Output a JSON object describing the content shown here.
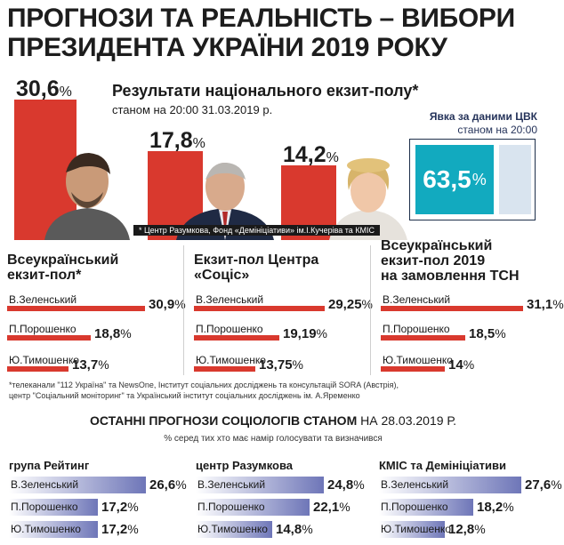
{
  "title": "ПРОГНОЗИ ТА РЕАЛЬНІСТЬ – ВИБОРИ ПРЕЗИДЕНТА УКРАЇНИ 2019 РОКУ",
  "exit_poll": {
    "title": "Результати національного екзит-полу*",
    "subtitle": "станом на 20:00 31.03.2019 р.",
    "footnote": "* Центр Разумкова, Фонд «Демініціативи» ім.І.Кучеріва та КМІС",
    "values": [
      "30,6",
      "17,8",
      "14,2"
    ],
    "pct": "%"
  },
  "turnout": {
    "title": "Явка за даними ЦВК",
    "subtitle": "станом на 20:00",
    "value": "63,5",
    "fraction": 0.635,
    "pct": "%"
  },
  "chart_data": [
    {
      "type": "bar",
      "title": "Результати національного екзит-полу*",
      "categories": [
        "В.Зеленський",
        "П.Порошенко",
        "Ю.Тимошенко"
      ],
      "values": [
        30.6,
        17.8,
        14.2
      ]
    },
    {
      "type": "bar",
      "title": "Всеукраїнський екзит-пол*",
      "categories": [
        "В.Зеленський",
        "П.Порошенко",
        "Ю.Тимошенко"
      ],
      "values": [
        30.9,
        18.8,
        13.7
      ]
    },
    {
      "type": "bar",
      "title": "Екзит-пол Центра «Соціс»",
      "categories": [
        "В.Зеленський",
        "П.Порошенко",
        "Ю.Тимошенко"
      ],
      "values": [
        29.25,
        19.19,
        13.75
      ]
    },
    {
      "type": "bar",
      "title": "Всеукраїнський екзит-пол 2019 на замовлення ТСН",
      "categories": [
        "В.Зеленський",
        "П.Порошенко",
        "Ю.Тимошенко"
      ],
      "values": [
        31.1,
        18.5,
        14
      ]
    },
    {
      "type": "bar",
      "title": "група Рейтинг",
      "categories": [
        "В.Зеленський",
        "П.Порошенко",
        "Ю.Тимошенко"
      ],
      "values": [
        26.6,
        17.2,
        17.2
      ]
    },
    {
      "type": "bar",
      "title": "центр Разумкова",
      "categories": [
        "В.Зеленський",
        "П.Порошенко",
        "Ю.Тимошенко"
      ],
      "values": [
        24.8,
        22.1,
        14.8
      ]
    },
    {
      "type": "bar",
      "title": "КМІС та Демініціативи",
      "categories": [
        "В.Зеленський",
        "П.Порошенко",
        "Ю.Тимошенко"
      ],
      "values": [
        27.6,
        18.2,
        12.8
      ]
    }
  ],
  "sections": [
    {
      "title_lines": [
        "Всеукраїнський",
        "екзит-пол*"
      ],
      "rows": [
        {
          "label": "В.Зеленський",
          "value": "30,9"
        },
        {
          "label": "П.Порошенко",
          "value": "18,8"
        },
        {
          "label": "Ю.Тимошенко",
          "value": "13,7"
        }
      ]
    },
    {
      "title_lines": [
        "Екзит-пол Центра",
        "«Соціс»"
      ],
      "rows": [
        {
          "label": "В.Зеленський",
          "value": "29,25"
        },
        {
          "label": "П.Порошенко",
          "value": "19,19"
        },
        {
          "label": "Ю.Тимошенко",
          "value": "13,75"
        }
      ]
    },
    {
      "title_lines": [
        "Всеукраїнський",
        "екзит-пол 2019",
        "на замовлення ТСН"
      ],
      "rows": [
        {
          "label": "В.Зеленський",
          "value": "31,1"
        },
        {
          "label": "П.Порошенко",
          "value": "18,5"
        },
        {
          "label": "Ю.Тимошенко",
          "value": "14"
        }
      ]
    }
  ],
  "footnote2_lines": [
    "*телеканали \"112 Україна\" та NewsOne, Інститут соціальних досліджень та консультацій SORA (Австрія),",
    "центр \"Соціальний моніторинг\" та Український інститут соціальних досліджень ім. А.Яременко"
  ],
  "polls": {
    "title_bold": "ОСТАННІ ПРОГНОЗИ СОЦІОЛОГІВ СТАНОМ",
    "title_normal": " НА 28.03.2019 Р.",
    "subtitle": "% серед тих хто має намір голосувати та визначився",
    "groups": [
      {
        "title": "група Рейтинг",
        "rows": [
          {
            "label": "В.Зеленський",
            "value": "26,6"
          },
          {
            "label": "П.Порошенко",
            "value": "17,2"
          },
          {
            "label": "Ю.Тимошенко",
            "value": "17,2"
          }
        ]
      },
      {
        "title": "центр Разумкова",
        "rows": [
          {
            "label": "В.Зеленський",
            "value": "24,8"
          },
          {
            "label": "П.Порошенко",
            "value": "22,1"
          },
          {
            "label": "Ю.Тимошенко",
            "value": "14,8"
          }
        ]
      },
      {
        "title": "КМІС та Демініціативи",
        "rows": [
          {
            "label": "В.Зеленський",
            "value": "27,6"
          },
          {
            "label": "П.Порошенко",
            "value": "18,2"
          },
          {
            "label": "Ю.Тимошенко",
            "value": "12,8"
          }
        ]
      }
    ]
  },
  "colors": {
    "red": "#d9392e",
    "teal": "#12aabf",
    "poll_blue": "#6e76b8"
  }
}
